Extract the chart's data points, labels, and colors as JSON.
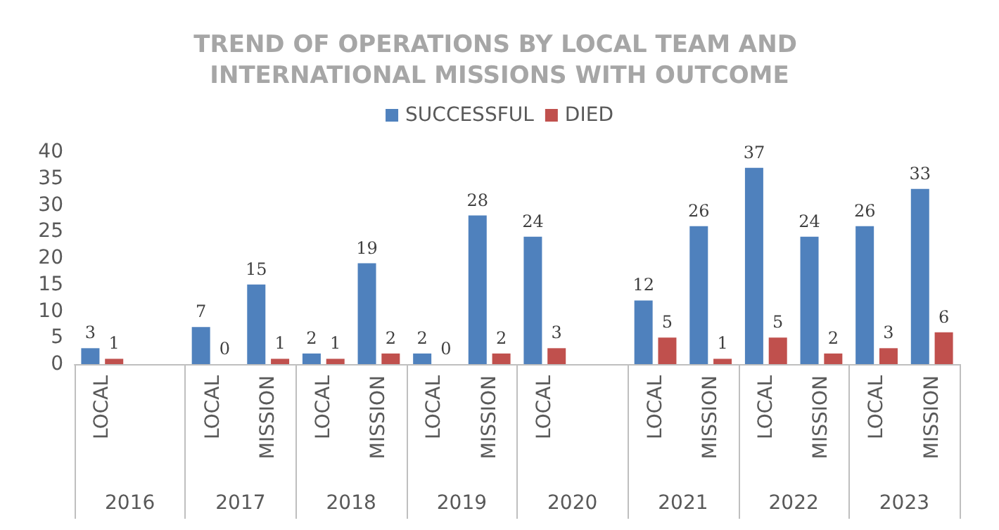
{
  "chart_data": {
    "type": "bar",
    "title": "TREND OF OPERATIONS BY LOCAL TEAM AND INTERNATIONAL MISSIONS WITH OUTCOME",
    "categories": [
      "LOCAL",
      null,
      "LOCAL",
      "MISSION",
      "LOCAL",
      "MISSION",
      "LOCAL",
      "MISSION",
      "LOCAL",
      null,
      "LOCAL",
      "MISSION",
      "LOCAL",
      "MISSION",
      "LOCAL",
      "MISSION"
    ],
    "annotations": [
      "2016",
      "2017",
      "2018",
      "2019",
      "2020",
      "2021",
      "2022",
      "2023"
    ],
    "series": [
      {
        "name": "SUCCESSFUL",
        "color": "#4f81bd",
        "values": [
          3,
          null,
          7,
          15,
          2,
          19,
          2,
          28,
          24,
          null,
          12,
          26,
          37,
          24,
          26,
          33
        ]
      },
      {
        "name": "DIED",
        "color": "#c0504d",
        "values": [
          1,
          null,
          0,
          1,
          1,
          2,
          0,
          2,
          3,
          null,
          5,
          1,
          5,
          2,
          3,
          6
        ]
      }
    ],
    "ylim": [
      0,
      40
    ],
    "yticks": [
      0,
      5,
      10,
      15,
      20,
      25,
      30,
      35,
      40
    ],
    "data_labels": true,
    "grid": false,
    "legend": "top"
  }
}
